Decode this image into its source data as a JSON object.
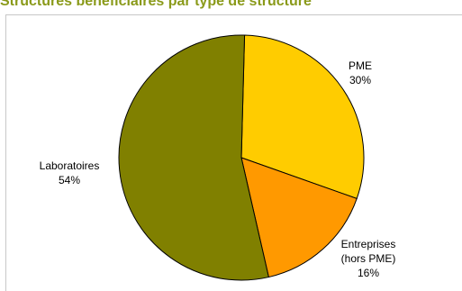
{
  "title": "Structures bénéficiaires par type de structure",
  "chart_data": {
    "type": "pie",
    "title": "Structures bénéficiaires par type de structure",
    "slices": [
      {
        "name": "PME",
        "label_lines": [
          "PME"
        ],
        "percent_label": "30%",
        "value": 30,
        "color": "#ffcc00"
      },
      {
        "name": "Entreprises (hors PME)",
        "label_lines": [
          "Entreprises",
          "(hors PME)"
        ],
        "percent_label": "16%",
        "value": 16,
        "color": "#ff9900"
      },
      {
        "name": "Laboratoires",
        "label_lines": [
          "Laboratoires"
        ],
        "percent_label": "54%",
        "value": 54,
        "color": "#808000"
      }
    ],
    "start_angle_deg": 1.5,
    "direction": "clockwise",
    "legend": "none",
    "slice_border_color": "#000000"
  }
}
